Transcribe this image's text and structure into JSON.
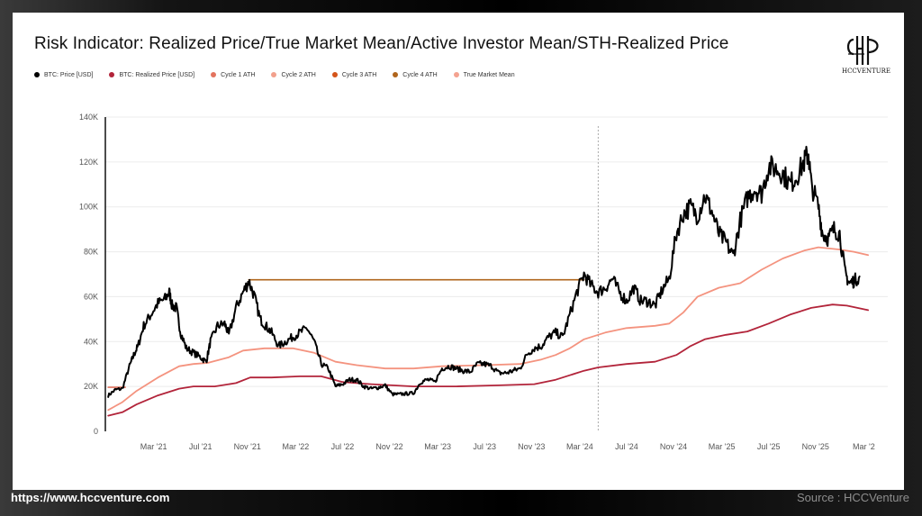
{
  "chart_data": {
    "type": "line",
    "title": "Risk Indicator: Realized Price/True Market Mean/Active Investor Mean/STH-Realized Price",
    "xlabel": "",
    "ylabel": "",
    "ylim": [
      0,
      140000
    ],
    "xlim": [
      2020.83,
      2026.25
    ],
    "y_ticks": [
      {
        "value": 0,
        "label": "0"
      },
      {
        "value": 20000,
        "label": "20K"
      },
      {
        "value": 40000,
        "label": "40K"
      },
      {
        "value": 60000,
        "label": "60K"
      },
      {
        "value": 80000,
        "label": "80K"
      },
      {
        "value": 100000,
        "label": "100K"
      },
      {
        "value": 120000,
        "label": "120K"
      },
      {
        "value": 140000,
        "label": "140K"
      }
    ],
    "x_ticks": [
      {
        "value": 2021.17,
        "label": "Mar '21"
      },
      {
        "value": 2021.5,
        "label": "Jul '21"
      },
      {
        "value": 2021.83,
        "label": "Nov '21"
      },
      {
        "value": 2022.17,
        "label": "Mar '22"
      },
      {
        "value": 2022.5,
        "label": "Jul '22"
      },
      {
        "value": 2022.83,
        "label": "Nov '22"
      },
      {
        "value": 2023.17,
        "label": "Mar '23"
      },
      {
        "value": 2023.5,
        "label": "Jul '23"
      },
      {
        "value": 2023.83,
        "label": "Nov '23"
      },
      {
        "value": 2024.17,
        "label": "Mar '24"
      },
      {
        "value": 2024.5,
        "label": "Jul '24"
      },
      {
        "value": 2024.83,
        "label": "Nov '24"
      },
      {
        "value": 2025.17,
        "label": "Mar '25"
      },
      {
        "value": 2025.5,
        "label": "Jul '25"
      },
      {
        "value": 2025.83,
        "label": "Nov '25"
      },
      {
        "value": 2026.17,
        "label": "Mar '2"
      }
    ],
    "series": [
      {
        "name": "BTC: Price [USD]",
        "color": "#000000",
        "kind": "price",
        "points": [
          [
            2020.85,
            16000
          ],
          [
            2020.9,
            18500
          ],
          [
            2020.95,
            19000
          ],
          [
            2021.0,
            29000
          ],
          [
            2021.03,
            34000
          ],
          [
            2021.06,
            38000
          ],
          [
            2021.1,
            47000
          ],
          [
            2021.15,
            52000
          ],
          [
            2021.2,
            57000
          ],
          [
            2021.25,
            59000
          ],
          [
            2021.28,
            62000
          ],
          [
            2021.3,
            56000
          ],
          [
            2021.33,
            55000
          ],
          [
            2021.36,
            44000
          ],
          [
            2021.4,
            37000
          ],
          [
            2021.45,
            35000
          ],
          [
            2021.5,
            33000
          ],
          [
            2021.54,
            31000
          ],
          [
            2021.57,
            40000
          ],
          [
            2021.62,
            47000
          ],
          [
            2021.67,
            48000
          ],
          [
            2021.7,
            43000
          ],
          [
            2021.75,
            55000
          ],
          [
            2021.8,
            62000
          ],
          [
            2021.84,
            67000
          ],
          [
            2021.88,
            60000
          ],
          [
            2021.92,
            50000
          ],
          [
            2021.96,
            47000
          ],
          [
            2022.0,
            44000
          ],
          [
            2022.05,
            38000
          ],
          [
            2022.1,
            40000
          ],
          [
            2022.15,
            42000
          ],
          [
            2022.2,
            44000
          ],
          [
            2022.25,
            46000
          ],
          [
            2022.3,
            40000
          ],
          [
            2022.35,
            30000
          ],
          [
            2022.4,
            28000
          ],
          [
            2022.45,
            20000
          ],
          [
            2022.5,
            21000
          ],
          [
            2022.55,
            23000
          ],
          [
            2022.6,
            23000
          ],
          [
            2022.65,
            20000
          ],
          [
            2022.7,
            19000
          ],
          [
            2022.75,
            19500
          ],
          [
            2022.8,
            20500
          ],
          [
            2022.85,
            16500
          ],
          [
            2022.9,
            16500
          ],
          [
            2022.95,
            16800
          ],
          [
            2023.0,
            17000
          ],
          [
            2023.05,
            22000
          ],
          [
            2023.1,
            23000
          ],
          [
            2023.15,
            22000
          ],
          [
            2023.2,
            28000
          ],
          [
            2023.25,
            29000
          ],
          [
            2023.3,
            28000
          ],
          [
            2023.35,
            27000
          ],
          [
            2023.4,
            26500
          ],
          [
            2023.45,
            30000
          ],
          [
            2023.5,
            30000
          ],
          [
            2023.55,
            29000
          ],
          [
            2023.6,
            26000
          ],
          [
            2023.65,
            26000
          ],
          [
            2023.7,
            27000
          ],
          [
            2023.75,
            28000
          ],
          [
            2023.8,
            34500
          ],
          [
            2023.85,
            37000
          ],
          [
            2023.9,
            38000
          ],
          [
            2023.95,
            42000
          ],
          [
            2024.0,
            44000
          ],
          [
            2024.05,
            42000
          ],
          [
            2024.1,
            52000
          ],
          [
            2024.15,
            62000
          ],
          [
            2024.2,
            70000
          ],
          [
            2024.25,
            65000
          ],
          [
            2024.3,
            62000
          ],
          [
            2024.35,
            64000
          ],
          [
            2024.4,
            68000
          ],
          [
            2024.45,
            62000
          ],
          [
            2024.5,
            58000
          ],
          [
            2024.55,
            64000
          ],
          [
            2024.6,
            58000
          ],
          [
            2024.65,
            58000
          ],
          [
            2024.7,
            56000
          ],
          [
            2024.75,
            63000
          ],
          [
            2024.8,
            68000
          ],
          [
            2024.85,
            88000
          ],
          [
            2024.9,
            97000
          ],
          [
            2024.95,
            100000
          ],
          [
            2025.0,
            96000
          ],
          [
            2025.05,
            105000
          ],
          [
            2025.1,
            98000
          ],
          [
            2025.15,
            88000
          ],
          [
            2025.2,
            84000
          ],
          [
            2025.25,
            78000
          ],
          [
            2025.3,
            94000
          ],
          [
            2025.35,
            104000
          ],
          [
            2025.4,
            108000
          ],
          [
            2025.45,
            106000
          ],
          [
            2025.5,
            118000
          ],
          [
            2025.55,
            117000
          ],
          [
            2025.6,
            115000
          ],
          [
            2025.65,
            110000
          ],
          [
            2025.7,
            114000
          ],
          [
            2025.75,
            120000
          ],
          [
            2025.78,
            124000
          ],
          [
            2025.8,
            110000
          ],
          [
            2025.85,
            100000
          ],
          [
            2025.88,
            88000
          ],
          [
            2025.92,
            86000
          ],
          [
            2025.96,
            90000
          ],
          [
            2026.0,
            88000
          ],
          [
            2026.04,
            70000
          ],
          [
            2026.07,
            66000
          ],
          [
            2026.1,
            67000
          ],
          [
            2026.14,
            69000
          ]
        ]
      },
      {
        "name": "BTC: Realized Price [USD]",
        "color": "#b2243a",
        "kind": "line",
        "points": [
          [
            2020.85,
            7000
          ],
          [
            2020.95,
            8500
          ],
          [
            2021.05,
            12000
          ],
          [
            2021.2,
            16000
          ],
          [
            2021.35,
            19000
          ],
          [
            2021.45,
            20000
          ],
          [
            2021.6,
            20000
          ],
          [
            2021.75,
            21500
          ],
          [
            2021.85,
            24000
          ],
          [
            2022.0,
            24000
          ],
          [
            2022.2,
            24500
          ],
          [
            2022.35,
            24500
          ],
          [
            2022.5,
            22000
          ],
          [
            2022.7,
            21000
          ],
          [
            2022.85,
            20500
          ],
          [
            2023.0,
            20000
          ],
          [
            2023.3,
            20000
          ],
          [
            2023.6,
            20500
          ],
          [
            2023.85,
            21000
          ],
          [
            2024.0,
            23000
          ],
          [
            2024.1,
            25000
          ],
          [
            2024.2,
            27000
          ],
          [
            2024.3,
            28500
          ],
          [
            2024.5,
            30000
          ],
          [
            2024.7,
            31000
          ],
          [
            2024.85,
            34000
          ],
          [
            2024.95,
            38000
          ],
          [
            2025.05,
            41000
          ],
          [
            2025.2,
            43000
          ],
          [
            2025.35,
            44500
          ],
          [
            2025.5,
            48000
          ],
          [
            2025.65,
            52000
          ],
          [
            2025.8,
            55000
          ],
          [
            2025.95,
            56500
          ],
          [
            2026.05,
            56000
          ],
          [
            2026.2,
            54000
          ]
        ]
      },
      {
        "name": "True Market Mean",
        "color": "#f4937f",
        "kind": "line",
        "points": [
          [
            2020.85,
            9500
          ],
          [
            2020.95,
            13000
          ],
          [
            2021.05,
            18000
          ],
          [
            2021.2,
            24000
          ],
          [
            2021.35,
            29000
          ],
          [
            2021.45,
            30000
          ],
          [
            2021.55,
            30500
          ],
          [
            2021.7,
            33000
          ],
          [
            2021.8,
            36000
          ],
          [
            2021.95,
            37000
          ],
          [
            2022.15,
            37000
          ],
          [
            2022.3,
            35000
          ],
          [
            2022.45,
            31000
          ],
          [
            2022.6,
            29500
          ],
          [
            2022.8,
            28000
          ],
          [
            2023.0,
            28000
          ],
          [
            2023.2,
            29000
          ],
          [
            2023.5,
            29500
          ],
          [
            2023.75,
            30000
          ],
          [
            2023.9,
            32000
          ],
          [
            2024.0,
            34000
          ],
          [
            2024.1,
            37000
          ],
          [
            2024.2,
            41000
          ],
          [
            2024.35,
            44000
          ],
          [
            2024.5,
            46000
          ],
          [
            2024.7,
            47000
          ],
          [
            2024.8,
            48000
          ],
          [
            2024.9,
            53000
          ],
          [
            2025.0,
            60000
          ],
          [
            2025.15,
            64000
          ],
          [
            2025.3,
            66000
          ],
          [
            2025.45,
            72000
          ],
          [
            2025.6,
            77000
          ],
          [
            2025.75,
            80500
          ],
          [
            2025.85,
            82000
          ],
          [
            2026.0,
            81000
          ],
          [
            2026.1,
            80000
          ],
          [
            2026.2,
            78500
          ]
        ]
      },
      {
        "name": "Cycle 4 ATH",
        "color": "#b0651c",
        "kind": "flat",
        "points": [
          [
            2021.84,
            67500
          ],
          [
            2024.2,
            67500
          ]
        ]
      },
      {
        "name": "Cycle 1 ATH",
        "color": "#e3735e",
        "kind": "flat",
        "points": [
          [
            2020.85,
            19600
          ],
          [
            2020.97,
            19600
          ]
        ]
      }
    ],
    "annotations": [
      {
        "type": "vertical-dotted-line",
        "x": 2024.3
      }
    ],
    "legend": [
      {
        "label": "BTC: Price [USD]",
        "color": "#000000"
      },
      {
        "label": "BTC: Realized Price [USD]",
        "color": "#b2243a"
      },
      {
        "label": "Cycle 1 ATH",
        "color": "#e3735e"
      },
      {
        "label": "Cycle 2 ATH",
        "color": "#f2a08c"
      },
      {
        "label": "Cycle 3 ATH",
        "color": "#d4541a"
      },
      {
        "label": "Cycle 4 ATH",
        "color": "#b0651c"
      },
      {
        "label": "True Market Mean",
        "color": "#f4a290"
      }
    ]
  },
  "logo": {
    "text": "HCCVENTURE"
  },
  "footer": {
    "url": "https://www.hccventure.com",
    "source": "Source : HCCVenture"
  }
}
